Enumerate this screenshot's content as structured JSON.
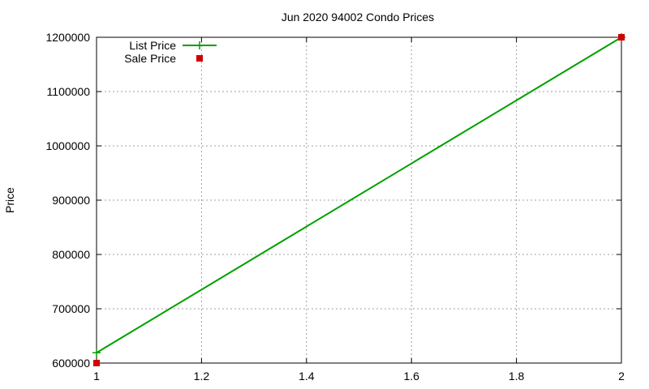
{
  "chart_data": {
    "type": "line",
    "title": "Jun 2020 94002 Condo Prices",
    "xlabel": "",
    "ylabel": "Price",
    "xlim": [
      1,
      2
    ],
    "ylim": [
      600000,
      1200000
    ],
    "xticks": [
      1,
      1.2,
      1.4,
      1.6,
      1.8,
      2
    ],
    "xtick_labels": [
      "1",
      "1.2",
      "1.4",
      "1.6",
      "1.8",
      "2"
    ],
    "yticks": [
      600000,
      700000,
      800000,
      900000,
      1000000,
      1100000,
      1200000
    ],
    "ytick_labels": [
      "600000",
      "700000",
      "800000",
      "900000",
      "1000000",
      "1100000",
      "1200000"
    ],
    "grid": true,
    "legend_placement": "top-left",
    "series": [
      {
        "name": "List Price",
        "style": "linespoints",
        "color": "#00a000",
        "x": [
          1,
          2
        ],
        "y": [
          619000,
          1200000
        ]
      },
      {
        "name": "Sale Price",
        "style": "points",
        "color": "#d00000",
        "x": [
          1,
          2
        ],
        "y": [
          600000,
          1200000
        ]
      }
    ]
  }
}
